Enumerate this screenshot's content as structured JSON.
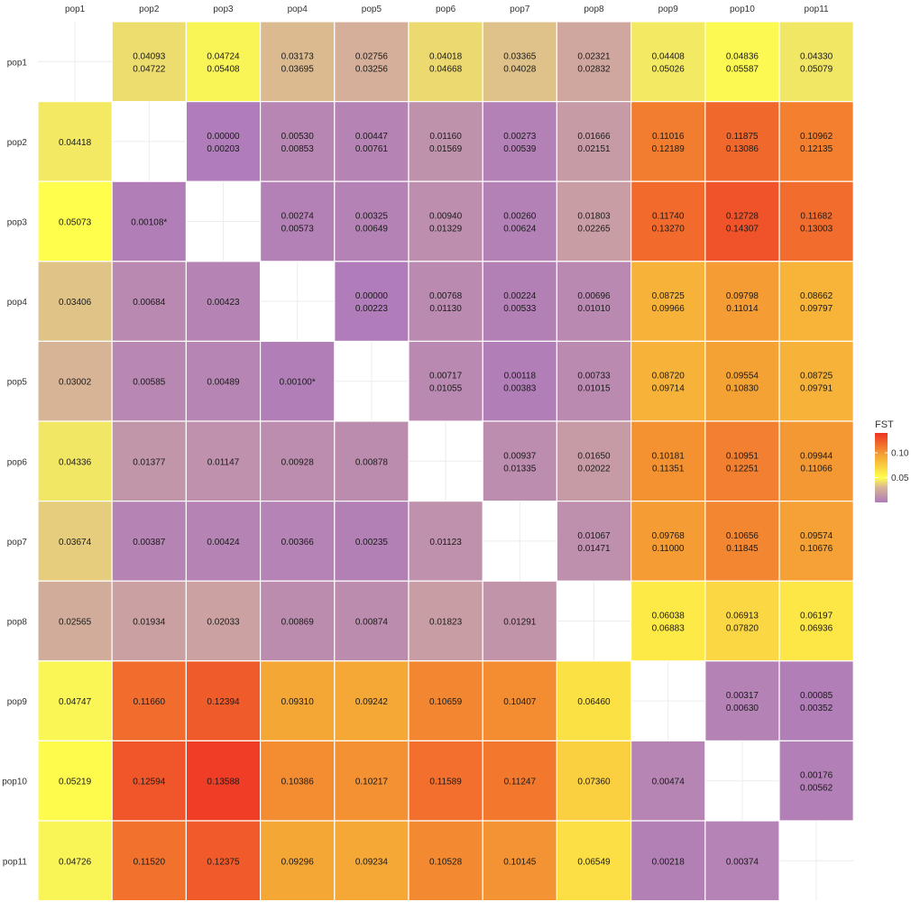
{
  "chart_data": {
    "type": "heatmap",
    "labels": [
      "pop1",
      "pop2",
      "pop3",
      "pop4",
      "pop5",
      "pop6",
      "pop7",
      "pop8",
      "pop9",
      "pop10",
      "pop11"
    ],
    "upper": [
      [
        null,
        [
          "0.04093",
          "0.04722"
        ],
        [
          "0.04724",
          "0.05408"
        ],
        [
          "0.03173",
          "0.03695"
        ],
        [
          "0.02756",
          "0.03256"
        ],
        [
          "0.04018",
          "0.04668"
        ],
        [
          "0.03365",
          "0.04028"
        ],
        [
          "0.02321",
          "0.02832"
        ],
        [
          "0.04408",
          "0.05026"
        ],
        [
          "0.04836",
          "0.05587"
        ],
        [
          "0.04330",
          "0.05079"
        ]
      ],
      [
        null,
        null,
        [
          "0.00000",
          "0.00203"
        ],
        [
          "0.00530",
          "0.00853"
        ],
        [
          "0.00447",
          "0.00761"
        ],
        [
          "0.01160",
          "0.01569"
        ],
        [
          "0.00273",
          "0.00539"
        ],
        [
          "0.01666",
          "0.02151"
        ],
        [
          "0.11016",
          "0.12189"
        ],
        [
          "0.11875",
          "0.13086"
        ],
        [
          "0.10962",
          "0.12135"
        ]
      ],
      [
        null,
        null,
        null,
        [
          "0.00274",
          "0.00573"
        ],
        [
          "0.00325",
          "0.00649"
        ],
        [
          "0.00940",
          "0.01329"
        ],
        [
          "0.00260",
          "0.00624"
        ],
        [
          "0.01803",
          "0.02265"
        ],
        [
          "0.11740",
          "0.13270"
        ],
        [
          "0.12728",
          "0.14307"
        ],
        [
          "0.11682",
          "0.13003"
        ]
      ],
      [
        null,
        null,
        null,
        null,
        [
          "0.00000",
          "0.00223"
        ],
        [
          "0.00768",
          "0.01130"
        ],
        [
          "0.00224",
          "0.00533"
        ],
        [
          "0.00696",
          "0.01010"
        ],
        [
          "0.08725",
          "0.09966"
        ],
        [
          "0.09798",
          "0.11014"
        ],
        [
          "0.08662",
          "0.09797"
        ]
      ],
      [
        null,
        null,
        null,
        null,
        null,
        [
          "0.00717",
          "0.01055"
        ],
        [
          "0.00118",
          "0.00383"
        ],
        [
          "0.00733",
          "0.01015"
        ],
        [
          "0.08720",
          "0.09714"
        ],
        [
          "0.09554",
          "0.10830"
        ],
        [
          "0.08725",
          "0.09791"
        ]
      ],
      [
        null,
        null,
        null,
        null,
        null,
        null,
        [
          "0.00937",
          "0.01335"
        ],
        [
          "0.01650",
          "0.02022"
        ],
        [
          "0.10181",
          "0.11351"
        ],
        [
          "0.10951",
          "0.12251"
        ],
        [
          "0.09944",
          "0.11066"
        ]
      ],
      [
        null,
        null,
        null,
        null,
        null,
        null,
        null,
        [
          "0.01067",
          "0.01471"
        ],
        [
          "0.09768",
          "0.11000"
        ],
        [
          "0.10656",
          "0.11845"
        ],
        [
          "0.09574",
          "0.10676"
        ]
      ],
      [
        null,
        null,
        null,
        null,
        null,
        null,
        null,
        null,
        [
          "0.06038",
          "0.06883"
        ],
        [
          "0.06913",
          "0.07820"
        ],
        [
          "0.06197",
          "0.06936"
        ]
      ],
      [
        null,
        null,
        null,
        null,
        null,
        null,
        null,
        null,
        null,
        [
          "0.00317",
          "0.00630"
        ],
        [
          "0.00085",
          "0.00352"
        ]
      ],
      [
        null,
        null,
        null,
        null,
        null,
        null,
        null,
        null,
        null,
        null,
        [
          "0.00176",
          "0.00562"
        ]
      ],
      [
        null,
        null,
        null,
        null,
        null,
        null,
        null,
        null,
        null,
        null,
        null
      ]
    ],
    "lower": [
      [
        null,
        null,
        null,
        null,
        null,
        null,
        null,
        null,
        null,
        null,
        null
      ],
      [
        "0.04418",
        null,
        null,
        null,
        null,
        null,
        null,
        null,
        null,
        null,
        null
      ],
      [
        "0.05073",
        "0.00108*",
        null,
        null,
        null,
        null,
        null,
        null,
        null,
        null,
        null
      ],
      [
        "0.03406",
        "0.00684",
        "0.00423",
        null,
        null,
        null,
        null,
        null,
        null,
        null,
        null
      ],
      [
        "0.03002",
        "0.00585",
        "0.00489",
        "0.00100*",
        null,
        null,
        null,
        null,
        null,
        null,
        null
      ],
      [
        "0.04336",
        "0.01377",
        "0.01147",
        "0.00928",
        "0.00878",
        null,
        null,
        null,
        null,
        null,
        null
      ],
      [
        "0.03674",
        "0.00387",
        "0.00424",
        "0.00366",
        "0.00235",
        "0.01123",
        null,
        null,
        null,
        null,
        null
      ],
      [
        "0.02565",
        "0.01934",
        "0.02033",
        "0.00869",
        "0.00874",
        "0.01823",
        "0.01291",
        null,
        null,
        null,
        null
      ],
      [
        "0.04747",
        "0.11660",
        "0.12394",
        "0.09310",
        "0.09242",
        "0.10659",
        "0.10407",
        "0.06460",
        null,
        null,
        null
      ],
      [
        "0.05219",
        "0.12594",
        "0.13588",
        "0.10386",
        "0.10217",
        "0.11589",
        "0.11247",
        "0.07360",
        "0.00474",
        null,
        null
      ],
      [
        "0.04726",
        "0.11520",
        "0.12375",
        "0.09296",
        "0.09234",
        "0.10528",
        "0.10145",
        "0.06549",
        "0.00218",
        "0.00374",
        null
      ]
    ],
    "legend": {
      "title": "FST",
      "ticks": [
        {
          "value": 0.05,
          "label": "0.05"
        },
        {
          "value": 0.1,
          "label": "0.10"
        }
      ],
      "range": [
        0,
        0.14
      ],
      "colors": [
        "#b07cb9",
        "#d8b496",
        "#ffff4d",
        "#f5a335",
        "#ee3324"
      ],
      "placement": "right"
    },
    "grid": true
  }
}
